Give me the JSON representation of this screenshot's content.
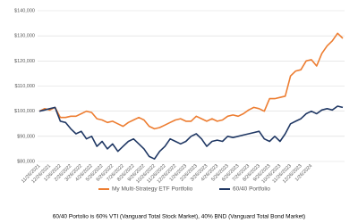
{
  "chart_data": {
    "type": "line",
    "categories": [
      "11/26/2021",
      null,
      "12/26/2021",
      null,
      "1/26/2022",
      null,
      "2/26/2022",
      null,
      "3/26/2022",
      null,
      "4/26/2022",
      null,
      "5/26/2022",
      null,
      "6/26/2022",
      null,
      "7/26/2022",
      null,
      "8/26/2022",
      null,
      "9/26/2022",
      null,
      "10/26/2022",
      null,
      "11/26/2022",
      null,
      "12/26/2022",
      null,
      "1/26/2023",
      null,
      "2/26/2023",
      null,
      "3/26/2023",
      null,
      "4/26/2023",
      null,
      "5/26/2023",
      null,
      "6/26/2023",
      null,
      "7/26/2023",
      null,
      "8/26/2023",
      null,
      "9/26/2023",
      null,
      "10/26/2023",
      null,
      "11/26/2023",
      null,
      "12/26/2023",
      null,
      "1/26/2024",
      null,
      null,
      null,
      null,
      null,
      null
    ],
    "series": [
      {
        "name": "My Multi-Strategy ETF Portfolio",
        "color": "#ED7D31",
        "values": [
          100000,
          101000,
          100500,
          101500,
          97500,
          97500,
          98000,
          98000,
          99000,
          100000,
          99500,
          97000,
          96500,
          95500,
          96000,
          95000,
          94000,
          95500,
          96500,
          97500,
          96500,
          94000,
          93000,
          93500,
          94500,
          95500,
          96500,
          97000,
          96000,
          96000,
          98000,
          97000,
          96000,
          97000,
          96000,
          96500,
          98000,
          98500,
          98000,
          99000,
          100500,
          101500,
          101000,
          100000,
          105000,
          105000,
          105500,
          106000,
          114000,
          116000,
          116500,
          120000,
          120500,
          118000,
          123000,
          126000,
          128000,
          131000,
          129000
        ]
      },
      {
        "name": "60/40 Portfolio",
        "color": "#203864",
        "values": [
          100000,
          100500,
          101000,
          101500,
          96000,
          95500,
          93000,
          91000,
          92000,
          89000,
          90000,
          86000,
          88000,
          85000,
          87000,
          84000,
          86000,
          88000,
          89000,
          87000,
          85000,
          82000,
          81000,
          84000,
          86000,
          89000,
          88000,
          87000,
          88000,
          90000,
          91000,
          89000,
          86000,
          88000,
          88500,
          88000,
          90000,
          89500,
          90000,
          90500,
          91000,
          91500,
          92000,
          89000,
          88000,
          90000,
          88000,
          91000,
          95000,
          96000,
          97000,
          99000,
          100000,
          99000,
          100500,
          101000,
          100500,
          102000,
          101500
        ]
      }
    ],
    "ylim": [
      80000,
      140000
    ],
    "yticks": [
      {
        "value": 80000,
        "label": "$80,000"
      },
      {
        "value": 90000,
        "label": "$90,000"
      },
      {
        "value": 100000,
        "label": "$100,000"
      },
      {
        "value": 110000,
        "label": "$110,000"
      },
      {
        "value": 120000,
        "label": "$120,000"
      },
      {
        "value": 130000,
        "label": "$130,000"
      },
      {
        "value": 140000,
        "label": "$140,000"
      }
    ],
    "grid": true,
    "legend": "bottom",
    "note": "60/40 Portolio is 60% VTI (Vanguard Total Stock Market), 40% BND (Vanguard Total Bond Market)"
  }
}
